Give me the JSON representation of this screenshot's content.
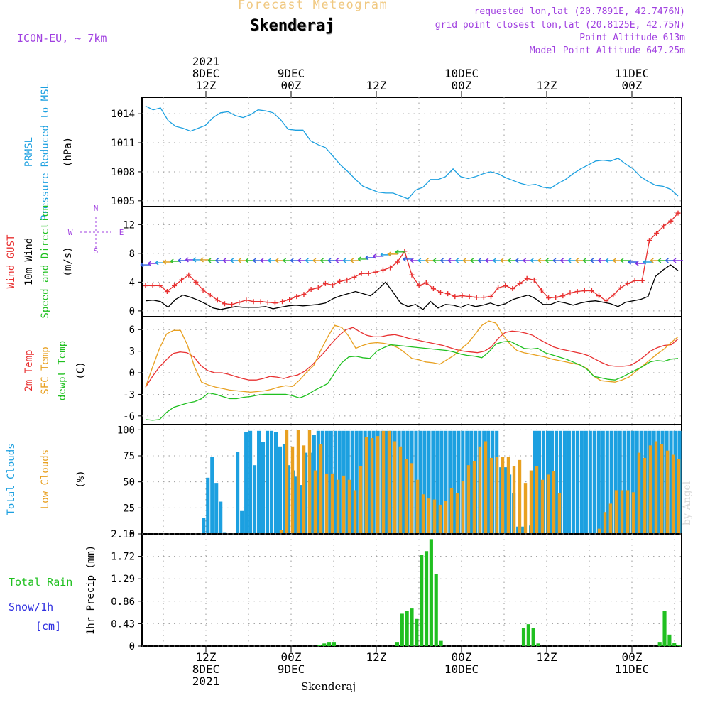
{
  "header": {
    "forecast_title": "Forecast Meteogram",
    "location": "Skenderaj",
    "model": "ICON-EU, ~ 7km",
    "requested": "requested lon,lat (20.7891E, 42.7476N)",
    "gridpoint": "grid point closest lon,lat (20.8125E, 42.75N)",
    "point_alt": "Point Altitude 613m",
    "model_alt": "Model Point Altitude 647.25m",
    "watermark": "by Angel",
    "footer": "Skenderaj"
  },
  "colors": {
    "pressure": "#1ca0e0",
    "gust": "#e83030",
    "wind": "#000000",
    "temp2m": "#e83030",
    "sfc": "#e8a020",
    "dewpt": "#20c020",
    "total_clouds": "#1ca0e0",
    "low_clouds": "#c8b060",
    "rain": "#20c020",
    "snow": "#3030e0",
    "purple": "#a040e0"
  },
  "x_axis": {
    "top_ticks": [
      {
        "t": 9,
        "l1": "2021",
        "l2": "8DEC",
        "l3": "12Z"
      },
      {
        "t": 21,
        "l1": "",
        "l2": "9DEC",
        "l3": "00Z"
      },
      {
        "t": 33,
        "l1": "",
        "l2": "",
        "l3": "12Z"
      },
      {
        "t": 45,
        "l1": "",
        "l2": "10DEC",
        "l3": "00Z"
      },
      {
        "t": 57,
        "l1": "",
        "l2": "",
        "l3": "12Z"
      },
      {
        "t": 69,
        "l1": "",
        "l2": "11DEC",
        "l3": "00Z"
      }
    ],
    "bottom_ticks": [
      {
        "t": 9,
        "l1": "12Z",
        "l2": "8DEC",
        "l3": "2021"
      },
      {
        "t": 21,
        "l1": "00Z",
        "l2": "9DEC",
        "l3": ""
      },
      {
        "t": 33,
        "l1": "12Z",
        "l2": "",
        "l3": ""
      },
      {
        "t": 45,
        "l1": "00Z",
        "l2": "10DEC",
        "l3": ""
      },
      {
        "t": 57,
        "l1": "12Z",
        "l2": "",
        "l3": ""
      },
      {
        "t": 69,
        "l1": "00Z",
        "l2": "11DEC",
        "l3": ""
      }
    ]
  },
  "chart_data": [
    {
      "type": "line",
      "ylabel_lines": [
        "PRMSL",
        "Pressure Reduced to MSL"
      ],
      "unit": "(hPa)",
      "ylim": [
        1004.4,
        1015.7
      ],
      "yticks": [
        1005,
        1008,
        1011,
        1014
      ],
      "series": [
        {
          "values": [
            1014.8,
            1014.4,
            1014.6,
            1013.3,
            1012.7,
            1012.5,
            1012.2,
            1012.5,
            1012.8,
            1013.6,
            1014.1,
            1014.2,
            1013.8,
            1013.6,
            1013.9,
            1014.4,
            1014.3,
            1014.1,
            1013.4,
            1012.4,
            1012.3,
            1012.3,
            1011.2,
            1010.8,
            1010.5,
            1009.6,
            1008.7,
            1008.0,
            1007.2,
            1006.5,
            1006.2,
            1005.9,
            1005.8,
            1005.8,
            1005.5,
            1005.2,
            1006.1,
            1006.4,
            1007.2,
            1007.2,
            1007.5,
            1008.3,
            1007.5,
            1007.3,
            1007.5,
            1007.8,
            1008.0,
            1007.8,
            1007.4,
            1007.1,
            1006.8,
            1006.6,
            1006.7,
            1006.4,
            1006.3,
            1006.8,
            1007.2,
            1007.8,
            1008.3,
            1008.7,
            1009.1,
            1009.2,
            1009.1,
            1009.4,
            1008.8,
            1008.3,
            1007.5,
            1007.0,
            1006.6,
            1006.5,
            1006.2,
            1005.5
          ]
        }
      ]
    },
    {
      "type": "line",
      "ylabel_lines": [
        "Wind GUST",
        "10m Wind",
        "Speed and Direction"
      ],
      "unit": "(m/s)",
      "compass": {
        "n": "N",
        "s": "S",
        "e": "E",
        "w": "W"
      },
      "ylim": [
        -0.8,
        14.5
      ],
      "yticks": [
        0,
        4,
        8,
        12
      ],
      "series": [
        {
          "name": "Wind GUST",
          "marker": "+",
          "values": [
            3.5,
            3.5,
            3.5,
            2.7,
            3.5,
            4.3,
            5.0,
            4.0,
            2.9,
            2.2,
            1.5,
            1.0,
            0.9,
            1.2,
            1.5,
            1.3,
            1.3,
            1.2,
            1.1,
            1.3,
            1.6,
            2.0,
            2.3,
            3.0,
            3.2,
            3.8,
            3.6,
            4.1,
            4.3,
            4.7,
            5.2,
            5.2,
            5.4,
            5.7,
            6.0,
            6.8,
            8.3,
            5.0,
            3.5,
            3.9,
            3.1,
            2.6,
            2.4,
            2.0,
            2.1,
            2.0,
            1.9,
            1.9,
            2.0,
            3.2,
            3.5,
            3.1,
            3.8,
            4.5,
            4.3,
            2.9,
            1.8,
            1.9,
            2.1,
            2.5,
            2.7,
            2.8,
            2.8,
            2.1,
            1.4,
            2.2,
            3.2,
            3.8,
            4.2,
            4.2,
            9.8,
            10.8,
            11.8,
            12.5,
            13.6
          ]
        },
        {
          "name": "10m Wind",
          "values": [
            1.4,
            1.5,
            1.3,
            0.5,
            1.6,
            2.2,
            1.9,
            1.5,
            1.0,
            0.4,
            0.2,
            0.4,
            0.6,
            0.5,
            0.5,
            0.5,
            0.6,
            0.3,
            0.5,
            0.7,
            0.8,
            0.7,
            0.8,
            0.9,
            1.1,
            1.7,
            2.1,
            2.4,
            2.7,
            2.4,
            2.1,
            3.0,
            4.0,
            2.6,
            1.1,
            0.6,
            0.9,
            0.2,
            1.3,
            0.4,
            0.9,
            0.8,
            0.5,
            0.9,
            0.6,
            0.8,
            1.1,
            0.7,
            1.0,
            1.6,
            1.9,
            2.2,
            1.7,
            0.9,
            0.9,
            1.3,
            1.1,
            0.8,
            1.1,
            1.3,
            1.4,
            1.2,
            1.0,
            0.6,
            1.2,
            1.4,
            1.6,
            2.0,
            4.8,
            5.7,
            6.4,
            5.6
          ]
        },
        {
          "name": "Speed and Direction",
          "marker": "arrow",
          "values": [
            6.4,
            6.6,
            6.7,
            6.8,
            6.9,
            7.0,
            7.1,
            7.1,
            7.1,
            7.0,
            7.0,
            7.0,
            7.0,
            7.0,
            7.0,
            7.0,
            7.0,
            7.0,
            7.0,
            7.0,
            7.0,
            7.0,
            7.0,
            7.0,
            7.0,
            7.0,
            7.0,
            7.0,
            7.0,
            7.2,
            7.4,
            7.6,
            7.8,
            7.9,
            8.2,
            7.2,
            7.0,
            7.0,
            7.0,
            7.0,
            7.0,
            7.0,
            7.0,
            7.0,
            7.0,
            7.0,
            7.0,
            7.0,
            7.0,
            7.0,
            7.0,
            7.0,
            7.0,
            7.0,
            7.0,
            7.0,
            7.0,
            7.0,
            7.0,
            7.0,
            7.0,
            7.0,
            7.0,
            7.0,
            7.0,
            6.8,
            6.6,
            6.8,
            7.0,
            7.0,
            7.0,
            7.0
          ]
        }
      ]
    },
    {
      "type": "line",
      "ylabel_lines": [
        "2m Temp",
        "SFC Temp",
        "dewpt Temp"
      ],
      "unit": "(C)",
      "ylim": [
        -7.2,
        7.8
      ],
      "yticks": [
        -6,
        -3,
        0,
        3,
        6
      ],
      "series": [
        {
          "name": "2m Temp",
          "values": [
            -2.0,
            -0.5,
            0.8,
            1.8,
            2.7,
            2.9,
            2.8,
            2.2,
            1.0,
            0.3,
            0.0,
            0.0,
            -0.2,
            -0.5,
            -0.8,
            -1.0,
            -1.0,
            -0.8,
            -0.5,
            -0.6,
            -0.8,
            -0.5,
            -0.3,
            0.2,
            1.0,
            2.0,
            3.0,
            4.2,
            5.2,
            6.0,
            6.3,
            5.7,
            5.2,
            5.0,
            5.0,
            5.2,
            5.3,
            5.1,
            4.8,
            4.6,
            4.4,
            4.2,
            4.0,
            3.8,
            3.5,
            3.2,
            3.0,
            2.9,
            2.8,
            3.0,
            3.6,
            4.8,
            5.6,
            5.8,
            5.7,
            5.5,
            5.2,
            4.6,
            4.1,
            3.6,
            3.3,
            3.1,
            2.9,
            2.7,
            2.4,
            1.9,
            1.4,
            1.0,
            0.9,
            0.9,
            1.0,
            1.5,
            2.2,
            3.0,
            3.5,
            3.8,
            3.9,
            4.7
          ]
        },
        {
          "name": "SFC Temp",
          "values": [
            -2.0,
            0.8,
            3.4,
            5.4,
            5.9,
            5.9,
            3.8,
            0.8,
            -1.3,
            -1.7,
            -2.0,
            -2.2,
            -2.4,
            -2.5,
            -2.6,
            -2.7,
            -2.6,
            -2.5,
            -2.3,
            -2.0,
            -1.8,
            -1.9,
            -1.0,
            0.1,
            1.0,
            3.1,
            5.0,
            6.6,
            6.3,
            5.1,
            3.4,
            3.8,
            4.1,
            4.2,
            4.1,
            3.9,
            3.5,
            2.8,
            2.0,
            1.8,
            1.5,
            1.4,
            1.2,
            1.8,
            2.4,
            3.3,
            4.1,
            5.3,
            6.6,
            7.2,
            6.9,
            5.3,
            4.0,
            3.1,
            2.8,
            2.6,
            2.4,
            2.2,
            1.9,
            1.7,
            1.5,
            1.3,
            1.1,
            0.6,
            -0.5,
            -1.1,
            -1.2,
            -1.3,
            -1.0,
            -0.6,
            0.2,
            1.0,
            1.8,
            2.6,
            3.3,
            4.2,
            5.0
          ]
        },
        {
          "name": "dewpt Temp",
          "values": [
            -6.5,
            -6.6,
            -6.5,
            -5.5,
            -4.8,
            -4.5,
            -4.2,
            -4.0,
            -3.6,
            -2.8,
            -3.0,
            -3.3,
            -3.6,
            -3.6,
            -3.4,
            -3.3,
            -3.1,
            -3.0,
            -3.0,
            -3.0,
            -3.0,
            -3.2,
            -3.5,
            -3.1,
            -2.5,
            -2.0,
            -1.5,
            0.0,
            1.4,
            2.2,
            2.3,
            2.1,
            2.0,
            3.0,
            3.5,
            3.9,
            3.8,
            3.7,
            3.6,
            3.5,
            3.4,
            3.3,
            3.2,
            3.1,
            2.9,
            2.6,
            2.4,
            2.3,
            2.1,
            2.9,
            4.0,
            4.3,
            4.4,
            3.9,
            3.4,
            3.3,
            3.4,
            2.8,
            2.5,
            2.2,
            1.9,
            1.5,
            1.1,
            0.5,
            -0.5,
            -0.7,
            -0.9,
            -1.0,
            -0.6,
            -0.1,
            0.4,
            0.9,
            1.5,
            1.7,
            1.6,
            1.9,
            2.0
          ]
        }
      ]
    },
    {
      "type": "bar",
      "ylabel_lines": [
        "Total Clouds",
        "Low Clouds"
      ],
      "unit": "(%)",
      "ylim": [
        0,
        105
      ],
      "yticks": [
        0,
        25,
        50,
        75,
        100
      ],
      "series": [
        {
          "name": "Total Clouds",
          "values": [
            0,
            0,
            0,
            0,
            0,
            0,
            0,
            0,
            0,
            0,
            0,
            0,
            0,
            0,
            15,
            54,
            74,
            49,
            31,
            1,
            0,
            0,
            79,
            22,
            98,
            99,
            66,
            99,
            88,
            99,
            99,
            98,
            84,
            86,
            66,
            61,
            55,
            47,
            78,
            78,
            95,
            99,
            99,
            99,
            99,
            99,
            99,
            99,
            99,
            99,
            99,
            99,
            99,
            99,
            99,
            99,
            99,
            99,
            99,
            99,
            99,
            99,
            99,
            99,
            99,
            99,
            99,
            99,
            99,
            99,
            99,
            99,
            99,
            99,
            99,
            99,
            99,
            99,
            99,
            99,
            99,
            99,
            99,
            99,
            64,
            64,
            57,
            39,
            7,
            7,
            0,
            8,
            99,
            99,
            99,
            99,
            99,
            99,
            99,
            99,
            99,
            99,
            99,
            99,
            99,
            99,
            99,
            99,
            99,
            99,
            99,
            99,
            99,
            99,
            99,
            99,
            99,
            99,
            99,
            99,
            99,
            99,
            99,
            99,
            99,
            99,
            99
          ]
        },
        {
          "name": "Low Clouds",
          "values": [
            0,
            0,
            0,
            0,
            0,
            0,
            0,
            0,
            0,
            0,
            0,
            0,
            0,
            0,
            0,
            0,
            0,
            0,
            0,
            0,
            0,
            0,
            0,
            0,
            4,
            100,
            84,
            100,
            85,
            100,
            61,
            86,
            58,
            58,
            52,
            56,
            52,
            42,
            65,
            93,
            92,
            94,
            99,
            99,
            89,
            84,
            72,
            68,
            52,
            38,
            34,
            33,
            28,
            32,
            44,
            39,
            51,
            66,
            70,
            84,
            89,
            73,
            74,
            74,
            74,
            65,
            71,
            49,
            61,
            65,
            52,
            57,
            60,
            39,
            0,
            0,
            0,
            0,
            0,
            0,
            5,
            21,
            29,
            42,
            42,
            42,
            40,
            78,
            73,
            85,
            89,
            86,
            80,
            76,
            72
          ]
        }
      ]
    },
    {
      "type": "bar",
      "ylabel_lines": [
        "Total Rain",
        "Snow/1h",
        "[cm]"
      ],
      "unit": "1hr Precip (mm)",
      "ylim": [
        0,
        2.15
      ],
      "yticks": [
        0,
        0.43,
        0.86,
        1.29,
        1.72,
        2.15
      ],
      "ytick_labels": [
        "0",
        "0.43",
        "0.86",
        "1.29",
        "1.72",
        "2.15"
      ],
      "series": [
        {
          "name": "Total Rain",
          "values": [
            0,
            0,
            0,
            0,
            0,
            0,
            0,
            0,
            0,
            0,
            0,
            0,
            0,
            0,
            0,
            0,
            0,
            0,
            0,
            0,
            0,
            0,
            0,
            0,
            0,
            0,
            0,
            0,
            0,
            0,
            0,
            0,
            0,
            0,
            0,
            0,
            0.02,
            0.05,
            0.08,
            0.08,
            0,
            0,
            0,
            0,
            0,
            0,
            0,
            0,
            0,
            0,
            0,
            0,
            0.08,
            0.62,
            0.68,
            0.72,
            0.52,
            1.75,
            1.82,
            2.05,
            1.38,
            0.1,
            0,
            0,
            0,
            0,
            0,
            0,
            0,
            0,
            0,
            0,
            0,
            0,
            0,
            0,
            0,
            0,
            0.35,
            0.42,
            0.35,
            0.05,
            0,
            0,
            0,
            0,
            0,
            0,
            0,
            0,
            0,
            0,
            0,
            0,
            0,
            0,
            0,
            0,
            0,
            0,
            0,
            0,
            0,
            0,
            0,
            0,
            0.08,
            0.68,
            0.22,
            0.06,
            0.02
          ]
        }
      ]
    }
  ]
}
